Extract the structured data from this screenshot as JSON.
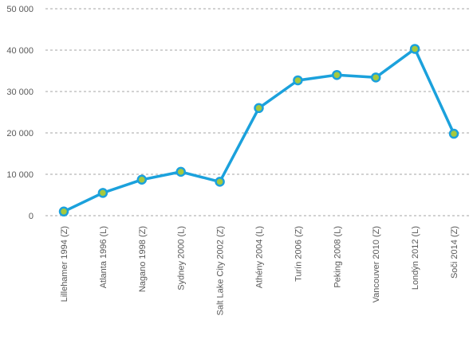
{
  "chart_data": {
    "type": "line",
    "categories": [
      "Lillehamer 1994 (Z)",
      "Atlanta 1996 (L)",
      "Nagano 1998 (Z)",
      "Sydney 2000 (L)",
      "Salt Lake City 2002 (Z)",
      "Athény 2004 (L)",
      "Turín 2006 (Z)",
      "Peking 2008 (L)",
      "Vancouver 2010 (Z)",
      "Londýn 2012 (L)",
      "Soči 2014 (Z)"
    ],
    "series": [
      {
        "values": [
          1000,
          5500,
          8700,
          10600,
          8200,
          26000,
          32700,
          34000,
          33400,
          40300,
          19800
        ]
      }
    ],
    "yticks": [
      "0",
      "10 000",
      "20 000",
      "30 000",
      "40 000",
      "50 000"
    ],
    "ylim": [
      0,
      50000
    ],
    "grid": true,
    "colors": {
      "line": "#1ba1dc",
      "marker_fill": "#a6c93d",
      "grid": "#a6a6a6",
      "text": "#595959"
    }
  }
}
